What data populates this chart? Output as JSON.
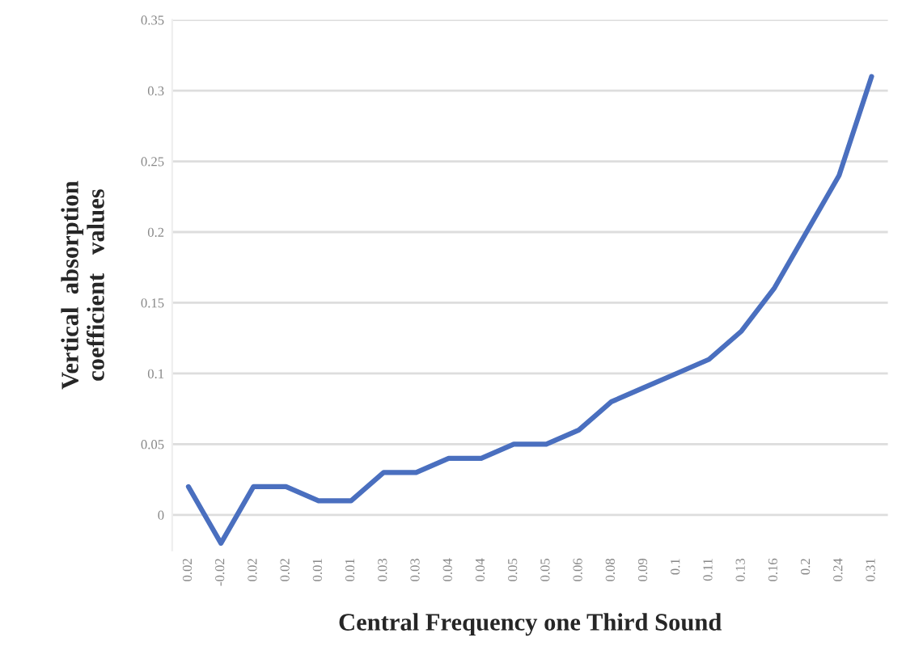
{
  "chart_data": {
    "type": "line",
    "xlabel": "Central Frequency one Third Sound",
    "ylabel": "Vertical  absorption\ncoefficient   values",
    "categories": [
      "0.02",
      "-0.02",
      "0.02",
      "0.02",
      "0.01",
      "0.01",
      "0.03",
      "0.03",
      "0.04",
      "0.04",
      "0.05",
      "0.05",
      "0.06",
      "0.08",
      "0.09",
      "0.1",
      "0.11",
      "0.13",
      "0.16",
      "0.2",
      "0.24",
      "0.31"
    ],
    "series": [
      {
        "color": "#4a6fbf",
        "values": [
          0.02,
          -0.02,
          0.02,
          0.02,
          0.01,
          0.01,
          0.03,
          0.03,
          0.04,
          0.04,
          0.05,
          0.05,
          0.06,
          0.08,
          0.09,
          0.1,
          0.11,
          0.13,
          0.16,
          0.2,
          0.24,
          0.31
        ]
      }
    ],
    "ylim": [
      -0.025,
      0.35
    ],
    "yticks": [
      0,
      0.05,
      0.1,
      0.15,
      0.2,
      0.25,
      0.3,
      0.35
    ],
    "grid": "y",
    "marker": "none",
    "line_style": "solid"
  }
}
